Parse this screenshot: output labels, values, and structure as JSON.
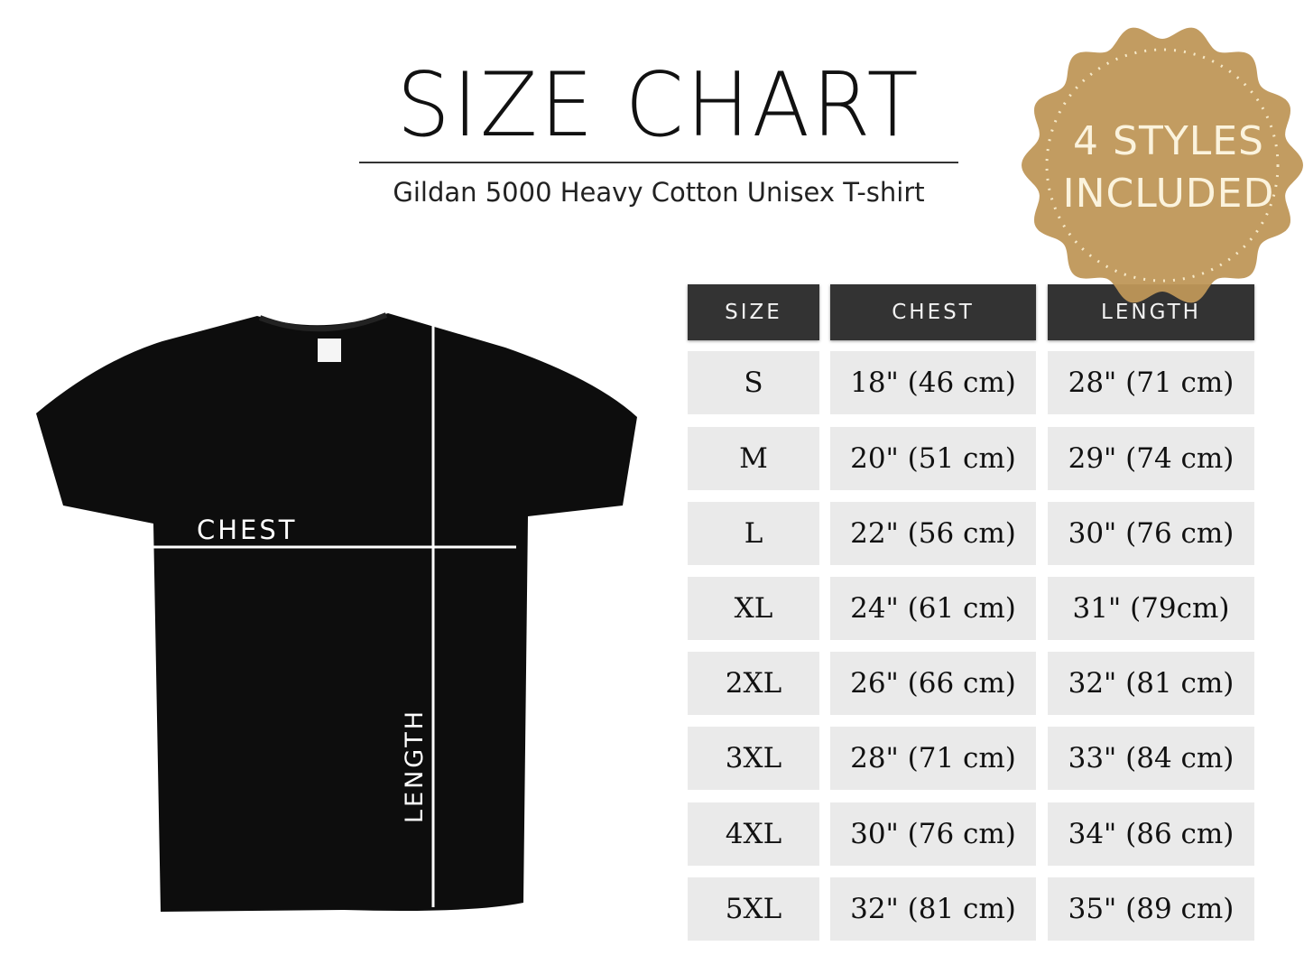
{
  "header": {
    "title": "SIZE CHART",
    "subtitle": "Gildan 5000 Heavy Cotton Unisex T-shirt"
  },
  "badge": {
    "line1": "4 STYLES",
    "line2": "INCLUDED",
    "color": "#bf9758"
  },
  "shirt": {
    "chest_label": "CHEST",
    "length_label": "LENGTH",
    "color": "#0d0d0d"
  },
  "table": {
    "columns": [
      "SIZE",
      "CHEST",
      "LENGTH"
    ],
    "rows": [
      [
        "S",
        "18\" (46 cm)",
        "28\" (71 cm)"
      ],
      [
        "M",
        "20\" (51 cm)",
        "29\" (74 cm)"
      ],
      [
        "L",
        "22\" (56 cm)",
        "30\" (76 cm)"
      ],
      [
        "XL",
        "24\" (61 cm)",
        "31\" (79cm)"
      ],
      [
        "2XL",
        "26\" (66 cm)",
        "32\" (81 cm)"
      ],
      [
        "3XL",
        "28\" (71 cm)",
        "33\" (84 cm)"
      ],
      [
        "4XL",
        "30\" (76 cm)",
        "34\" (86 cm)"
      ],
      [
        "5XL",
        "32\" (81 cm)",
        "35\" (89 cm)"
      ]
    ]
  }
}
